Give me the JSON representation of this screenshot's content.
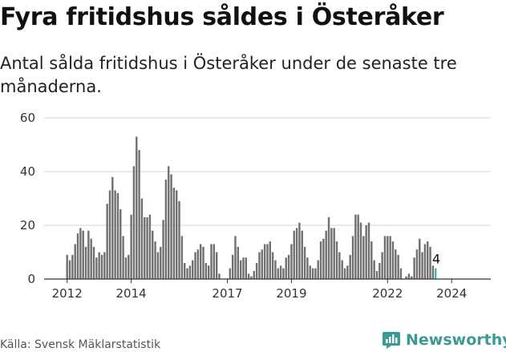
{
  "title": "Fyra fritidshus såldes i Österåker",
  "subtitle": "Antal sålda fritidshus i Österåker under de senaste tre månaderna.",
  "source": "Källa: Svensk Mäklarstatistik",
  "brand": {
    "name": "Newsworthy",
    "icon": "newsworthy-logo-icon",
    "color": "#3a9a96"
  },
  "chart_data": {
    "type": "bar",
    "title": "Fyra fritidshus såldes i Österåker",
    "xlabel": "",
    "ylabel": "",
    "ylim": [
      0,
      60
    ],
    "yticks": [
      0,
      20,
      40,
      60
    ],
    "ytick_labels": [
      "0",
      "20",
      "40",
      "60"
    ],
    "xtick_labels": [
      "2012",
      "2014",
      "2017",
      "2019",
      "2022",
      "2024"
    ],
    "xtick_years": [
      2012,
      2014,
      2017,
      2019,
      2022,
      2024
    ],
    "start": "2012-01",
    "bar_color": "#707070",
    "highlight_color": "#3fb8b0",
    "gridlines": true,
    "annotation": {
      "label": "4",
      "value": 4
    },
    "values": [
      9,
      7,
      9,
      13,
      17,
      19,
      18,
      12,
      18,
      15,
      12,
      8,
      10,
      9,
      10,
      28,
      33,
      38,
      33,
      32,
      26,
      16,
      8,
      9,
      24,
      42,
      53,
      48,
      30,
      23,
      23,
      24,
      18,
      14,
      10,
      12,
      22,
      37,
      42,
      39,
      34,
      33,
      29,
      16,
      6,
      4,
      5,
      7,
      10,
      11,
      13,
      12,
      6,
      5,
      13,
      13,
      10,
      2,
      0,
      0,
      0,
      4,
      9,
      16,
      12,
      7,
      8,
      8,
      2,
      1,
      3,
      6,
      10,
      11,
      13,
      13,
      14,
      10,
      7,
      4,
      5,
      4,
      8,
      9,
      13,
      18,
      19,
      21,
      18,
      12,
      8,
      5,
      4,
      4,
      7,
      14,
      15,
      18,
      23,
      19,
      19,
      14,
      10,
      7,
      4,
      5,
      9,
      16,
      24,
      24,
      21,
      16,
      20,
      21,
      14,
      7,
      3,
      6,
      10,
      16,
      16,
      16,
      14,
      11,
      9,
      4,
      0,
      1,
      2,
      1,
      8,
      11,
      15,
      10,
      13,
      14,
      12,
      5,
      4
    ]
  }
}
